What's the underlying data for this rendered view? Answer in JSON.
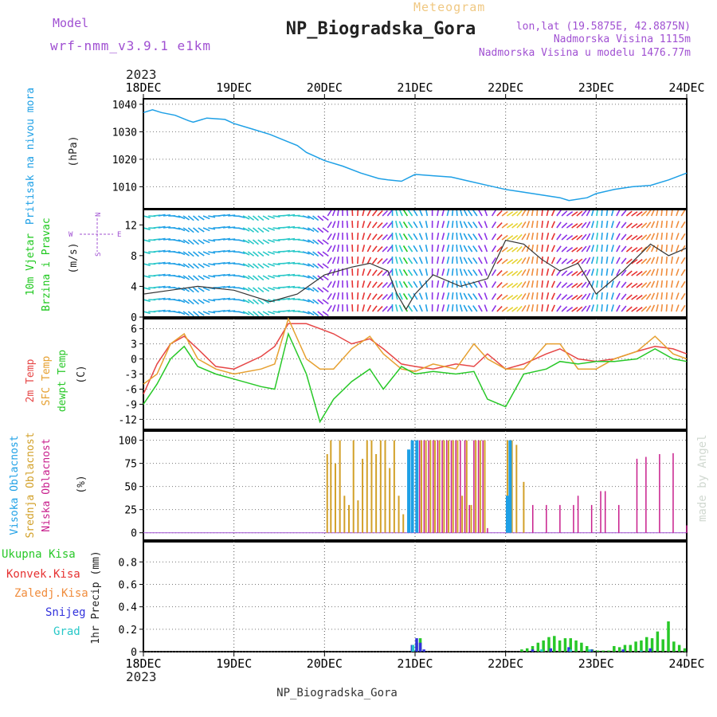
{
  "header": {
    "model_label": "Model",
    "model_name": "wrf-nmm_v3.9.1 e1km",
    "meteogram_label": "Meteogram",
    "station_title": "NP_Biogradska_Gora",
    "coords": "lon,lat (19.5875E, 42.8875N)",
    "elevation": "Nadmorska Visina 1115m",
    "model_elevation": "Nadmorska Visina u modelu 1476.77m",
    "footer_station": "NP_Biogradska_Gora",
    "credit": "made by Angel",
    "year_top": "2023",
    "year_bottom": "2023"
  },
  "colors": {
    "pressure": "#1ea0e6",
    "wind_label": "#1ec81e",
    "dir_label": "#a050d2",
    "temp2m": "#e64646",
    "sfc": "#e6a030",
    "dewpt": "#28c828",
    "cloud_high": "#1ea0e6",
    "cloud_mid": "#d2a028",
    "cloud_low": "#c81e8c",
    "snow": "#3232dc",
    "convective": "#e63232",
    "frozen": "#f08c3c",
    "graupel": "#28c8c8"
  },
  "chart_data": [
    {
      "type": "line",
      "panel": "pressure",
      "title": "NP_Biogradska_Gora",
      "ylabel": "(hPa)",
      "side_labels": [
        "Pritisak na nivou mora"
      ],
      "x_ticks": [
        "18DEC",
        "19DEC",
        "20DEC",
        "21DEC",
        "22DEC",
        "23DEC",
        "24DEC"
      ],
      "ylim": [
        1002,
        1042
      ],
      "y_ticks": [
        1010,
        1020,
        1030,
        1040
      ],
      "series": [
        {
          "name": "Pritisak na nivou mora",
          "x": [
            0,
            0.1,
            0.2,
            0.35,
            0.5,
            0.55,
            0.7,
            0.9,
            1.0,
            1.2,
            1.4,
            1.55,
            1.7,
            1.8,
            2.0,
            2.2,
            2.4,
            2.6,
            2.7,
            2.85,
            3.0,
            3.2,
            3.4,
            3.6,
            3.8,
            4.0,
            4.2,
            4.4,
            4.6,
            4.7,
            4.9,
            5.0,
            5.2,
            5.4,
            5.6,
            5.8,
            6.0
          ],
          "values": [
            1037,
            1038,
            1037,
            1036,
            1034,
            1033.5,
            1035,
            1034.5,
            1033,
            1031,
            1029,
            1027,
            1025,
            1022.5,
            1019.5,
            1017.5,
            1015,
            1013,
            1012.5,
            1012,
            1014.5,
            1014,
            1013.5,
            1012,
            1010.5,
            1009,
            1008,
            1007,
            1006,
            1005,
            1006,
            1007.5,
            1009,
            1010,
            1010.5,
            1012.5,
            1015
          ]
        }
      ]
    },
    {
      "type": "line",
      "panel": "wind",
      "ylabel": "(m/s)",
      "side_labels": [
        "10m Vjetar",
        "Brzina i Pravac"
      ],
      "direction_legend": [
        "N",
        "W",
        "E",
        "S"
      ],
      "ylim": [
        0,
        14
      ],
      "y_ticks": [
        0,
        4,
        8,
        12
      ],
      "series": [
        {
          "name": "10m Vjetar",
          "x": [
            0,
            0.3,
            0.6,
            1.0,
            1.4,
            1.7,
            2.0,
            2.3,
            2.5,
            2.7,
            2.8,
            2.9,
            3.0,
            3.2,
            3.5,
            3.8,
            4.0,
            4.2,
            4.4,
            4.6,
            4.8,
            5.0,
            5.3,
            5.6,
            5.8,
            6.0
          ],
          "values": [
            3,
            3.5,
            4,
            3.5,
            2,
            3,
            5.5,
            6.5,
            7,
            6,
            3,
            1,
            3,
            5.5,
            4,
            5,
            10,
            9.5,
            7.5,
            6,
            7,
            3,
            6,
            9.5,
            8,
            9
          ]
        }
      ]
    },
    {
      "type": "line",
      "panel": "temperature",
      "ylabel": "(C)",
      "side_labels": [
        "2m Temp",
        "SFC Temp",
        "dewpt Temp"
      ],
      "ylim": [
        -14,
        8
      ],
      "y_ticks": [
        -12,
        -9,
        -6,
        -3,
        0,
        3,
        6
      ],
      "x": [
        0,
        0.15,
        0.3,
        0.45,
        0.6,
        0.8,
        1.0,
        1.3,
        1.45,
        1.6,
        1.8,
        1.95,
        2.1,
        2.3,
        2.5,
        2.65,
        2.85,
        3.0,
        3.2,
        3.45,
        3.65,
        3.8,
        4.0,
        4.2,
        4.45,
        4.6,
        4.8,
        5.0,
        5.2,
        5.45,
        5.65,
        5.85,
        6.0
      ],
      "series": [
        {
          "name": "2m Temp",
          "values": [
            -7,
            -1,
            3,
            4.5,
            2,
            -1.5,
            -2,
            0.5,
            2.5,
            7,
            7,
            6,
            5,
            3,
            4,
            2,
            -1,
            -1.5,
            -2,
            -1,
            -1.5,
            1,
            -2,
            -1,
            1,
            2,
            0,
            -0.5,
            0,
            1.5,
            2.5,
            2,
            1
          ]
        },
        {
          "name": "SFC Temp",
          "values": [
            -5,
            -3,
            3,
            5,
            0,
            -2,
            -3,
            -2,
            -1,
            8,
            0,
            -2,
            -2,
            2,
            4.5,
            1,
            -2,
            -2.5,
            -1,
            -2,
            3,
            0,
            -2,
            -2,
            3,
            3,
            -2,
            -2,
            0,
            1.5,
            4.5,
            1,
            0
          ]
        },
        {
          "name": "dewpt Temp",
          "values": [
            -9,
            -5,
            0,
            2.5,
            -1.5,
            -3,
            -4,
            -5.5,
            -6,
            5,
            -3,
            -12.5,
            -8,
            -4.5,
            -2,
            -6,
            -1.5,
            -3,
            -2.5,
            -3,
            -2.5,
            -8,
            -9.5,
            -3,
            -2,
            -0.5,
            -1,
            -0.5,
            -0.5,
            0,
            2,
            0,
            -0.5
          ]
        }
      ]
    },
    {
      "type": "bar",
      "panel": "clouds",
      "ylabel": "(%)",
      "side_labels": [
        "Visoka Oblacnost",
        "Srednja Oblacnost",
        "Niska Oblacnost"
      ],
      "ylim": [
        0,
        100
      ],
      "y_ticks": [
        0,
        25,
        50,
        75,
        100
      ],
      "series": [
        {
          "name": "Visoka Oblacnost",
          "x": [
            2.93,
            2.97,
            3.02,
            4.02,
            4.05
          ],
          "values": [
            90,
            100,
            100,
            40,
            100
          ]
        },
        {
          "name": "Srednja Oblacnost",
          "x": [
            2.03,
            2.07,
            2.12,
            2.17,
            2.22,
            2.27,
            2.32,
            2.37,
            2.42,
            2.47,
            2.52,
            2.57,
            2.62,
            2.67,
            2.72,
            2.77,
            2.82,
            2.87,
            3.07,
            3.12,
            3.17,
            3.22,
            3.27,
            3.32,
            3.37,
            3.42,
            3.47,
            3.52,
            3.57,
            3.62,
            3.67,
            3.72,
            3.77,
            4.02,
            4.07,
            4.12,
            4.2
          ],
          "values": [
            85,
            100,
            75,
            100,
            40,
            30,
            100,
            35,
            80,
            100,
            100,
            85,
            100,
            100,
            70,
            100,
            40,
            20,
            100,
            100,
            100,
            100,
            100,
            100,
            100,
            100,
            100,
            40,
            100,
            30,
            100,
            100,
            100,
            100,
            100,
            95,
            55
          ]
        },
        {
          "name": "Niska Oblacnost",
          "x": [
            2.98,
            3.05,
            3.1,
            3.15,
            3.2,
            3.25,
            3.3,
            3.35,
            3.4,
            3.45,
            3.5,
            3.55,
            3.6,
            3.65,
            3.7,
            3.75,
            3.8,
            4.3,
            4.45,
            4.6,
            4.75,
            4.8,
            4.95,
            5.05,
            5.1,
            5.25,
            5.45,
            5.55,
            5.7,
            5.85,
            6.0
          ],
          "values": [
            40,
            100,
            100,
            100,
            100,
            100,
            100,
            100,
            100,
            100,
            100,
            100,
            30,
            100,
            100,
            100,
            5,
            30,
            30,
            30,
            30,
            40,
            30,
            45,
            45,
            30,
            80,
            82,
            85,
            86,
            8
          ]
        }
      ]
    },
    {
      "type": "bar",
      "panel": "precipitation",
      "ylabel": "1hr Precip (mm)",
      "side_labels": [
        "Ukupna Kisa",
        "Konvek.Kisa",
        "Zaledj.Kisa",
        "Snijeg",
        "Grad"
      ],
      "ylim": [
        0,
        1
      ],
      "y_ticks": [
        0,
        0.2,
        0.4,
        0.6,
        0.8
      ],
      "x_ticks": [
        "18DEC",
        "19DEC",
        "20DEC",
        "21DEC",
        "22DEC",
        "23DEC",
        "24DEC"
      ],
      "series": [
        {
          "name": "Ukupna Kisa",
          "x": [
            2.97,
            3.02,
            3.06,
            4.18,
            4.24,
            4.3,
            4.36,
            4.42,
            4.48,
            4.54,
            4.6,
            4.66,
            4.72,
            4.78,
            4.84,
            4.9,
            4.96,
            5.02,
            5.08,
            5.14,
            5.2,
            5.26,
            5.32,
            5.38,
            5.44,
            5.5,
            5.56,
            5.62,
            5.68,
            5.74,
            5.8,
            5.86,
            5.92,
            5.98
          ],
          "values": [
            0.02,
            0.08,
            0.12,
            0.02,
            0.03,
            0.05,
            0.08,
            0.1,
            0.13,
            0.14,
            0.1,
            0.12,
            0.12,
            0.1,
            0.08,
            0.05,
            0.02,
            0.01,
            0.01,
            0.01,
            0.05,
            0.04,
            0.06,
            0.06,
            0.09,
            0.1,
            0.13,
            0.12,
            0.18,
            0.11,
            0.27,
            0.09,
            0.06,
            0.03
          ]
        },
        {
          "name": "Snijeg",
          "x": [
            2.97,
            3.02,
            3.06,
            3.1,
            4.3,
            4.5,
            4.7,
            4.95,
            5.3,
            5.6
          ],
          "values": [
            0.06,
            0.12,
            0.08,
            0.02,
            0.02,
            0.03,
            0.04,
            0.02,
            0.02,
            0.03
          ]
        },
        {
          "name": "Grad",
          "x": [
            2.98,
            4.4,
            4.72,
            4.93,
            5.5
          ],
          "values": [
            0.06,
            0.02,
            0.02,
            0.02,
            0.01
          ]
        }
      ]
    }
  ]
}
